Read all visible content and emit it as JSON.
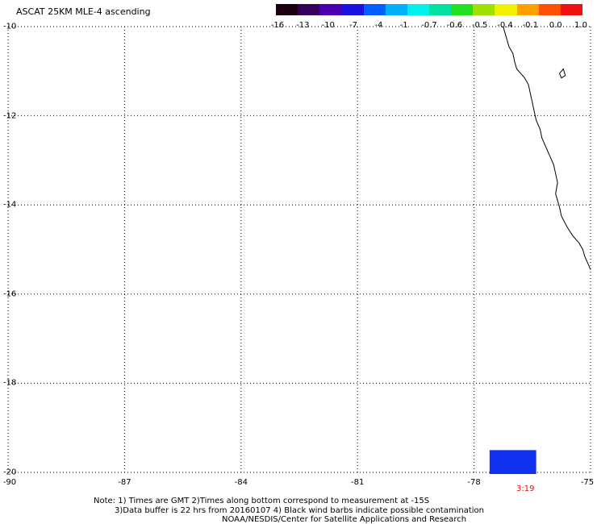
{
  "title": "ASCAT 25KM MLE-4 ascending",
  "colorbar": {
    "labels": [
      "-16",
      "-13",
      "-10",
      "-7",
      "-4",
      "-1",
      "-0.7",
      "-0.6",
      "-0.5",
      "-0.4",
      "-0.1",
      "0.0",
      "1.0"
    ],
    "colors": [
      "#1a0010",
      "#35005a",
      "#4a00b0",
      "#1a10e0",
      "#0060ff",
      "#00b0ff",
      "#00f0f0",
      "#00e0a0",
      "#20e020",
      "#a0e000",
      "#f0f000",
      "#ffa000",
      "#ff5000",
      "#f01010"
    ]
  },
  "axes": {
    "lat_ticks": [
      "-10",
      "-12",
      "-14",
      "-16",
      "-18",
      "-20"
    ],
    "lon_ticks": [
      "-90",
      "-87",
      "-84",
      "-81",
      "-78",
      "-75"
    ],
    "lat_range": [
      -10,
      -20
    ],
    "lon_range": [
      -90,
      -75
    ],
    "grid": "dotted"
  },
  "data_patch": {
    "lon_min": -77.6,
    "lon_max": -76.4,
    "lat_min": -20.0,
    "lat_max": -19.5,
    "color": "#1030f0"
  },
  "time_label": "3:19",
  "notes": {
    "line1": "Note: 1) Times are GMT 2)Times along bottom correspond to measurement at -15S",
    "line2": "3)Data buffer is 22 hrs from 20160107 4) Black wind barbs indicate possible contamination",
    "line3": "NOAA/NESDIS/Center for Satellite Applications and Research"
  },
  "coastline": [
    [
      -77.25,
      -10.0
    ],
    [
      -77.2,
      -10.15
    ],
    [
      -77.15,
      -10.3
    ],
    [
      -77.1,
      -10.45
    ],
    [
      -77.0,
      -10.6
    ],
    [
      -76.95,
      -10.8
    ],
    [
      -76.9,
      -10.95
    ],
    [
      -76.8,
      -11.05
    ],
    [
      -76.7,
      -11.15
    ],
    [
      -76.6,
      -11.3
    ],
    [
      -76.55,
      -11.5
    ],
    [
      -76.5,
      -11.7
    ],
    [
      -76.45,
      -11.9
    ],
    [
      -76.4,
      -12.1
    ],
    [
      -76.3,
      -12.3
    ],
    [
      -76.25,
      -12.5
    ],
    [
      -76.15,
      -12.7
    ],
    [
      -76.05,
      -12.9
    ],
    [
      -75.95,
      -13.1
    ],
    [
      -75.9,
      -13.3
    ],
    [
      -75.85,
      -13.5
    ],
    [
      -75.9,
      -13.75
    ],
    [
      -75.85,
      -13.9
    ],
    [
      -75.8,
      -14.05
    ],
    [
      -75.75,
      -14.25
    ],
    [
      -75.6,
      -14.5
    ],
    [
      -75.45,
      -14.7
    ],
    [
      -75.3,
      -14.85
    ],
    [
      -75.2,
      -15.0
    ],
    [
      -75.15,
      -15.15
    ],
    [
      -75.1,
      -15.25
    ],
    [
      -75.05,
      -15.35
    ],
    [
      -75.0,
      -15.45
    ]
  ],
  "island": [
    [
      -75.8,
      -11.05
    ],
    [
      -75.7,
      -10.95
    ],
    [
      -75.65,
      -11.1
    ],
    [
      -75.75,
      -11.15
    ],
    [
      -75.8,
      -11.05
    ]
  ]
}
